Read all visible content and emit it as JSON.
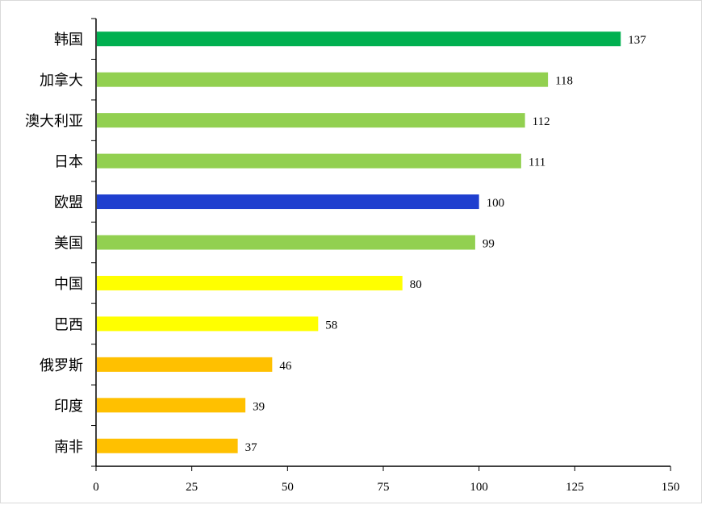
{
  "chart_data": {
    "type": "bar",
    "orientation": "horizontal",
    "title": "",
    "xlabel": "",
    "ylabel": "",
    "xlim": [
      0,
      150
    ],
    "xticks": [
      0,
      25,
      50,
      75,
      100,
      125,
      150
    ],
    "grid": false,
    "categories": [
      "韩国",
      "加拿大",
      "澳大利亚",
      "日本",
      "欧盟",
      "美国",
      "中国",
      "巴西",
      "俄罗斯",
      "印度",
      "南非"
    ],
    "values": [
      137,
      118,
      112,
      111,
      100,
      99,
      80,
      58,
      46,
      39,
      37
    ],
    "colors": [
      "#00B050",
      "#92D050",
      "#92D050",
      "#92D050",
      "#1F3FCF",
      "#92D050",
      "#FFFF00",
      "#FFFF00",
      "#FFC000",
      "#FFC000",
      "#FFC000"
    ]
  }
}
